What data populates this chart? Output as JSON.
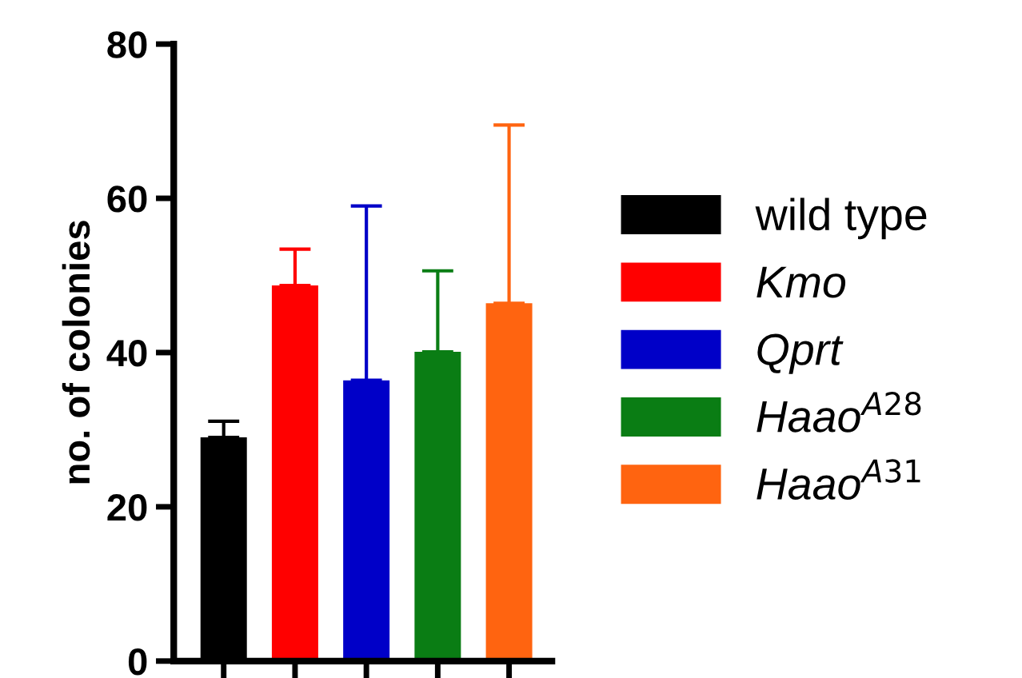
{
  "chart_data": {
    "type": "bar",
    "ylabel": "no. of colonies",
    "categories": [
      null,
      null,
      null,
      null,
      null
    ],
    "series": [
      {
        "name": "wild type",
        "color": "#000000",
        "values": [
          29,
          null,
          null,
          null,
          null
        ],
        "errors": [
          [
            29,
            31.1
          ],
          null,
          null,
          null,
          null
        ]
      },
      {
        "name": "Kmo",
        "color": "#ff0000",
        "values": [
          null,
          48.7,
          null,
          null,
          null
        ],
        "errors": [
          null,
          [
            48.7,
            53.4
          ],
          null,
          null,
          null
        ]
      },
      {
        "name": "Qprt",
        "color": "#0000c8",
        "values": [
          null,
          null,
          36.4,
          null,
          null
        ],
        "errors": [
          null,
          null,
          [
            36.4,
            59
          ],
          null,
          null
        ]
      },
      {
        "name": "Haao$^{A28}$",
        "color": "#0a7d14",
        "values": [
          null,
          null,
          null,
          40.1,
          null
        ],
        "errors": [
          null,
          null,
          null,
          [
            40.1,
            50.6
          ],
          null
        ]
      },
      {
        "name": "Haao$^{A31}$",
        "color": "#ff6410",
        "values": [
          null,
          null,
          null,
          null,
          46.4
        ],
        "errors": [
          null,
          null,
          null,
          null,
          [
            46.4,
            69.5
          ]
        ]
      }
    ],
    "ylim": [
      0,
      80
    ],
    "yticks": [
      0,
      20,
      40,
      60,
      80
    ],
    "grid": false,
    "legend": "right"
  }
}
